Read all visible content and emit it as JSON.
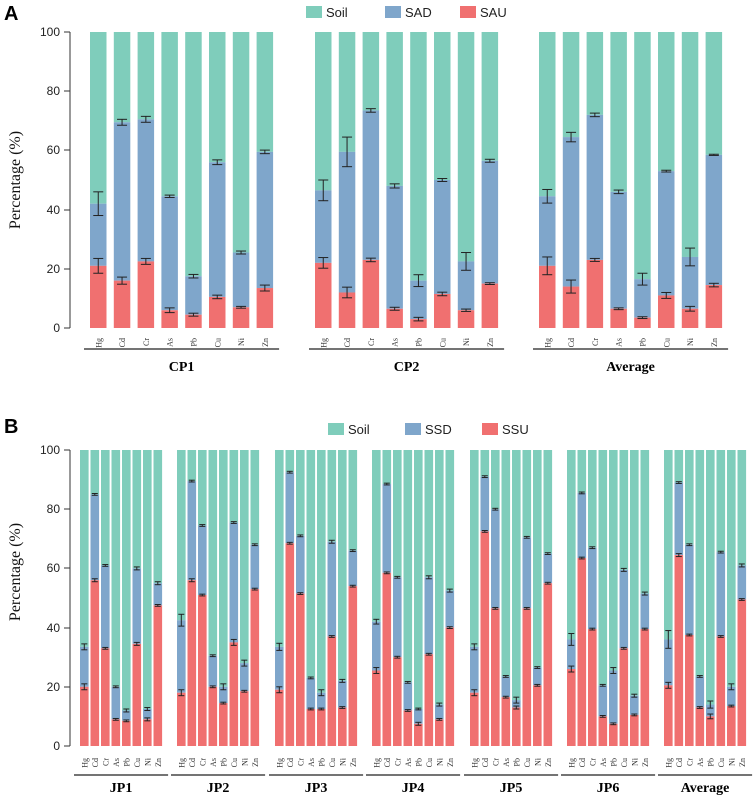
{
  "colors": {
    "soil": "#7fcdbb",
    "dissolved": "#7fa6cb",
    "u": "#f07070",
    "err": "#222222"
  },
  "elements": [
    "Hg",
    "Cd",
    "Cr",
    "As",
    "Pb",
    "Cu",
    "Ni",
    "Zn"
  ],
  "chart_data": [
    {
      "panel": "A",
      "type": "bar",
      "stacked": true,
      "ylabel": "Percentage (%)",
      "ylim": [
        0,
        100
      ],
      "yticks": [
        "0",
        "20",
        "40",
        "60",
        "80",
        "100"
      ],
      "legend": [
        "Soil",
        "SAD",
        "SAU"
      ],
      "groups": [
        {
          "label": "CP1",
          "categories": [
            "Hg",
            "Cd",
            "Cr",
            "As",
            "Pb",
            "Cu",
            "Ni",
            "Zn"
          ],
          "bottom": [
            21,
            16,
            22.5,
            6,
            4.5,
            10.5,
            7,
            13.5
          ],
          "mid": [
            42,
            69.5,
            70.5,
            44.5,
            17.5,
            56,
            25.5,
            59.5
          ],
          "bottom_err": [
            2.5,
            1.2,
            1,
            0.8,
            0.5,
            0.6,
            0.3,
            1
          ],
          "mid_err": [
            4,
            1,
            1,
            0.4,
            0.6,
            0.8,
            0.5,
            0.6
          ]
        },
        {
          "label": "CP2",
          "categories": [
            "Hg",
            "Cd",
            "Cr",
            "As",
            "Pb",
            "Cu",
            "Ni",
            "Zn"
          ],
          "bottom": [
            22,
            12,
            23,
            6.5,
            3,
            11.5,
            6,
            15
          ],
          "mid": [
            46.5,
            59.5,
            73.5,
            48,
            16,
            50,
            22.5,
            56.5
          ],
          "bottom_err": [
            1.8,
            1.8,
            0.6,
            0.5,
            0.6,
            0.6,
            0.4,
            0.3
          ],
          "mid_err": [
            3.5,
            5,
            0.6,
            0.7,
            2,
            0.5,
            3,
            0.5
          ]
        },
        {
          "label": "Average",
          "categories": [
            "Hg",
            "Cd",
            "Cr",
            "As",
            "Pb",
            "Cu",
            "Ni",
            "Zn"
          ],
          "bottom": [
            21,
            14,
            23,
            6.5,
            3.5,
            11,
            6.5,
            14.5
          ],
          "mid": [
            44.5,
            64.5,
            72,
            46,
            16.5,
            53,
            24,
            58.5
          ],
          "bottom_err": [
            3,
            2.2,
            0.5,
            0.3,
            0.3,
            1,
            0.8,
            0.6
          ],
          "mid_err": [
            2.3,
            1.6,
            0.6,
            0.6,
            2,
            0.3,
            3,
            0.2
          ]
        }
      ]
    },
    {
      "panel": "B",
      "type": "bar",
      "stacked": true,
      "ylabel": "Percentage (%)",
      "ylim": [
        0,
        100
      ],
      "yticks": [
        "0",
        "20",
        "40",
        "60",
        "80",
        "100"
      ],
      "legend": [
        "Soil",
        "SSD",
        "SSU"
      ],
      "groups": [
        {
          "label": "JP1",
          "categories": [
            "Hg",
            "Cd",
            "Cr",
            "As",
            "Pb",
            "Cu",
            "Ni",
            "Zn"
          ],
          "bottom": [
            20,
            56,
            33,
            9,
            8.5,
            34.5,
            9,
            47.5
          ],
          "mid": [
            33.5,
            85,
            61,
            20,
            12,
            60,
            12.5,
            55
          ],
          "bottom_err": [
            1,
            0.5,
            0.3,
            0.3,
            0.3,
            0.5,
            0.5,
            0.3
          ],
          "mid_err": [
            1,
            0.3,
            0.3,
            0.3,
            0.5,
            0.5,
            0.5,
            0.5
          ]
        },
        {
          "label": "JP2",
          "categories": [
            "Hg",
            "Cd",
            "Cr",
            "As",
            "Pb",
            "Cu",
            "Ni",
            "Zn"
          ],
          "bottom": [
            18,
            56,
            51,
            20,
            14.5,
            35,
            18.5,
            53
          ],
          "mid": [
            42.5,
            89.5,
            74.5,
            30.5,
            20,
            75.5,
            28,
            68
          ],
          "bottom_err": [
            1,
            0.5,
            0.3,
            0.3,
            0.3,
            1,
            0.3,
            0.3
          ],
          "mid_err": [
            2,
            0.3,
            0.3,
            0.3,
            1,
            0.3,
            1,
            0.3
          ]
        },
        {
          "label": "JP3",
          "categories": [
            "Hg",
            "Cd",
            "Cr",
            "As",
            "Pb",
            "Cu",
            "Ni",
            "Zn"
          ],
          "bottom": [
            19,
            68.5,
            51.5,
            12.5,
            12.5,
            37,
            13,
            54
          ],
          "mid": [
            33.5,
            92.5,
            71,
            23,
            18,
            69,
            22,
            66
          ],
          "bottom_err": [
            1,
            0.3,
            0.3,
            0.3,
            0.3,
            0.3,
            0.3,
            0.3
          ],
          "mid_err": [
            1.2,
            0.3,
            0.3,
            0.3,
            1,
            0.5,
            0.5,
            0.3
          ]
        },
        {
          "label": "JP4",
          "categories": [
            "Hg",
            "Cd",
            "Cr",
            "As",
            "Pb",
            "Cu",
            "Ni",
            "Zn"
          ],
          "bottom": [
            25.5,
            58.5,
            30,
            12,
            7.5,
            31,
            9,
            40
          ],
          "mid": [
            42,
            88.5,
            57,
            21.5,
            12.5,
            57,
            14,
            52.5
          ],
          "bottom_err": [
            1,
            0.3,
            0.3,
            0.3,
            0.5,
            0.3,
            0.3,
            0.3
          ],
          "mid_err": [
            0.8,
            0.3,
            0.3,
            0.3,
            0.3,
            0.5,
            0.5,
            0.5
          ]
        },
        {
          "label": "JP5",
          "categories": [
            "Hg",
            "Cd",
            "Cr",
            "As",
            "Pb",
            "Cu",
            "Ni",
            "Zn"
          ],
          "bottom": [
            18,
            72.5,
            46.5,
            16.5,
            13,
            46.5,
            20.5,
            55
          ],
          "mid": [
            33.5,
            91,
            80,
            23.5,
            15.5,
            70.5,
            26.5,
            65
          ],
          "bottom_err": [
            1,
            0.3,
            0.3,
            0.3,
            0.5,
            0.3,
            0.3,
            0.3
          ],
          "mid_err": [
            1,
            0.3,
            0.3,
            0.3,
            1,
            0.3,
            0.3,
            0.3
          ]
        },
        {
          "label": "JP6",
          "categories": [
            "Hg",
            "Cd",
            "Cr",
            "As",
            "Pb",
            "Cu",
            "Ni",
            "Zn"
          ],
          "bottom": [
            26,
            63.5,
            39.5,
            10,
            7.5,
            33,
            10.5,
            39.5
          ],
          "mid": [
            36,
            85.5,
            67,
            20.5,
            25.5,
            59.5,
            17,
            51.5
          ],
          "bottom_err": [
            1,
            0.3,
            0.3,
            0.3,
            0.3,
            0.3,
            0.3,
            0.3
          ],
          "mid_err": [
            2,
            0.3,
            0.3,
            0.3,
            1,
            0.5,
            0.5,
            0.5
          ]
        },
        {
          "label": "Average",
          "categories": [
            "Hg",
            "Cd",
            "Cr",
            "As",
            "Pb",
            "Cu",
            "Ni",
            "Zn"
          ],
          "bottom": [
            20.5,
            64.5,
            37.5,
            13,
            10,
            37,
            13.5,
            49.5
          ],
          "mid": [
            36,
            89,
            68,
            23.5,
            14,
            65.5,
            20,
            61
          ],
          "bottom_err": [
            1,
            0.5,
            0.3,
            0.3,
            0.8,
            0.3,
            0.3,
            0.3
          ],
          "mid_err": [
            3,
            0.3,
            0.3,
            0.3,
            1.2,
            0.3,
            1,
            0.5
          ]
        }
      ]
    }
  ]
}
